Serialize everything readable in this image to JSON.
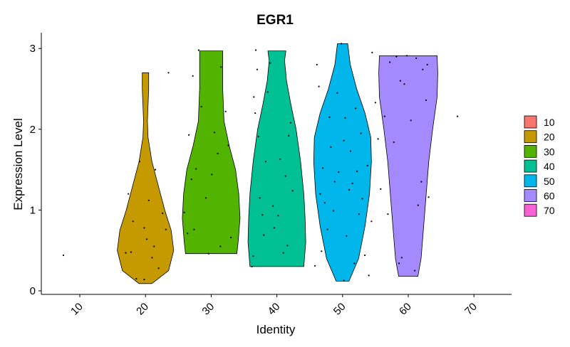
{
  "chart_data": {
    "type": "violin",
    "title": "EGR1",
    "xlabel": "Identity",
    "ylabel": "Expression Level",
    "ylim": [
      0,
      3.2
    ],
    "yticks": [
      "0",
      "1",
      "2",
      "3"
    ],
    "categories": [
      "10",
      "20",
      "30",
      "40",
      "50",
      "60",
      "70"
    ],
    "legend": {
      "position": "right",
      "entries": [
        {
          "label": "10",
          "color": "#F8766D"
        },
        {
          "label": "20",
          "color": "#C49A00"
        },
        {
          "label": "30",
          "color": "#53B400"
        },
        {
          "label": "40",
          "color": "#00C094"
        },
        {
          "label": "50",
          "color": "#00B6EB"
        },
        {
          "label": "60",
          "color": "#A58AFF"
        },
        {
          "label": "70",
          "color": "#FB61D7"
        }
      ]
    },
    "violins": [
      {
        "category": "20",
        "color": "#C49A00",
        "ymin": 0.09,
        "ymax": 2.7,
        "profile": [
          [
            0.09,
            0.1
          ],
          [
            0.25,
            0.36
          ],
          [
            0.5,
            0.44
          ],
          [
            0.75,
            0.4
          ],
          [
            1.0,
            0.3
          ],
          [
            1.3,
            0.2
          ],
          [
            1.6,
            0.1
          ],
          [
            1.9,
            0.04
          ],
          [
            2.1,
            0.03
          ],
          [
            2.5,
            0.05
          ],
          [
            2.7,
            0.05
          ]
        ]
      },
      {
        "category": "30",
        "color": "#53B400",
        "ymin": 0.46,
        "ymax": 2.97,
        "profile": [
          [
            0.46,
            0.4
          ],
          [
            0.6,
            0.42
          ],
          [
            0.9,
            0.45
          ],
          [
            1.2,
            0.43
          ],
          [
            1.5,
            0.38
          ],
          [
            1.8,
            0.28
          ],
          [
            2.1,
            0.2
          ],
          [
            2.5,
            0.18
          ],
          [
            2.8,
            0.18
          ],
          [
            2.97,
            0.18
          ]
        ]
      },
      {
        "category": "40",
        "color": "#00C094",
        "ymin": 0.3,
        "ymax": 2.97,
        "profile": [
          [
            0.3,
            0.42
          ],
          [
            0.6,
            0.45
          ],
          [
            0.9,
            0.44
          ],
          [
            1.2,
            0.42
          ],
          [
            1.6,
            0.37
          ],
          [
            2.0,
            0.3
          ],
          [
            2.3,
            0.22
          ],
          [
            2.6,
            0.15
          ],
          [
            2.85,
            0.12
          ],
          [
            2.97,
            0.14
          ]
        ]
      },
      {
        "category": "50",
        "color": "#00B6EB",
        "ymin": 0.12,
        "ymax": 3.06,
        "profile": [
          [
            0.12,
            0.1
          ],
          [
            0.4,
            0.25
          ],
          [
            0.8,
            0.35
          ],
          [
            1.2,
            0.42
          ],
          [
            1.6,
            0.45
          ],
          [
            1.9,
            0.44
          ],
          [
            2.2,
            0.35
          ],
          [
            2.5,
            0.22
          ],
          [
            2.8,
            0.12
          ],
          [
            3.06,
            0.08
          ]
        ]
      },
      {
        "category": "60",
        "color": "#A58AFF",
        "ymin": 0.18,
        "ymax": 2.91,
        "profile": [
          [
            0.18,
            0.15
          ],
          [
            0.4,
            0.2
          ],
          [
            0.8,
            0.24
          ],
          [
            1.2,
            0.28
          ],
          [
            1.6,
            0.32
          ],
          [
            2.0,
            0.38
          ],
          [
            2.4,
            0.45
          ],
          [
            2.7,
            0.46
          ],
          [
            2.91,
            0.45
          ]
        ]
      }
    ],
    "points": [
      {
        "x": -0.25,
        "y": 0.44
      },
      {
        "x": 0.7,
        "y": 0.47
      },
      {
        "x": 0.74,
        "y": 1.2
      },
      {
        "x": 0.78,
        "y": 0.48
      },
      {
        "x": 0.81,
        "y": 0.86
      },
      {
        "x": 0.86,
        "y": 0.15
      },
      {
        "x": 0.91,
        "y": 1.6
      },
      {
        "x": 0.98,
        "y": 0.78
      },
      {
        "x": 1.02,
        "y": 0.64
      },
      {
        "x": 1.05,
        "y": 1.12
      },
      {
        "x": 1.1,
        "y": 0.41
      },
      {
        "x": 1.13,
        "y": 0.55
      },
      {
        "x": 1.15,
        "y": 1.5
      },
      {
        "x": 1.2,
        "y": 0.28
      },
      {
        "x": 1.26,
        "y": 0.96
      },
      {
        "x": 1.31,
        "y": 0.76
      },
      {
        "x": 1.35,
        "y": 2.7
      },
      {
        "x": 0.98,
        "y": 0.14
      },
      {
        "x": 1.59,
        "y": 0.97
      },
      {
        "x": 1.64,
        "y": 0.71
      },
      {
        "x": 1.66,
        "y": 1.93
      },
      {
        "x": 1.7,
        "y": 1.38
      },
      {
        "x": 1.72,
        "y": 2.66
      },
      {
        "x": 1.74,
        "y": 0.76
      },
      {
        "x": 1.77,
        "y": 1.51
      },
      {
        "x": 1.81,
        "y": 2.98
      },
      {
        "x": 1.85,
        "y": 2.28
      },
      {
        "x": 1.92,
        "y": 1.15
      },
      {
        "x": 1.96,
        "y": 0.46
      },
      {
        "x": 2.01,
        "y": 1.44
      },
      {
        "x": 2.05,
        "y": 1.96
      },
      {
        "x": 2.1,
        "y": 1.7
      },
      {
        "x": 2.14,
        "y": 0.55
      },
      {
        "x": 2.15,
        "y": 2.77
      },
      {
        "x": 2.22,
        "y": 2.22
      },
      {
        "x": 2.26,
        "y": 1.8
      },
      {
        "x": 2.3,
        "y": 0.66
      },
      {
        "x": 2.62,
        "y": 0.3
      },
      {
        "x": 2.64,
        "y": 0.43
      },
      {
        "x": 2.65,
        "y": 2.4
      },
      {
        "x": 2.67,
        "y": 2.2
      },
      {
        "x": 2.68,
        "y": 2.98
      },
      {
        "x": 2.7,
        "y": 2.74
      },
      {
        "x": 2.72,
        "y": 1.91
      },
      {
        "x": 2.74,
        "y": 1.15
      },
      {
        "x": 2.78,
        "y": 0.94
      },
      {
        "x": 2.8,
        "y": 0.69
      },
      {
        "x": 2.83,
        "y": 1.6
      },
      {
        "x": 2.86,
        "y": 2.46
      },
      {
        "x": 2.9,
        "y": 2.82
      },
      {
        "x": 2.94,
        "y": 1.05
      },
      {
        "x": 2.96,
        "y": 0.78
      },
      {
        "x": 3.02,
        "y": 0.93
      },
      {
        "x": 3.05,
        "y": 1.63
      },
      {
        "x": 3.1,
        "y": 0.47
      },
      {
        "x": 3.13,
        "y": 1.42
      },
      {
        "x": 3.16,
        "y": 0.56
      },
      {
        "x": 3.18,
        "y": 1.92
      },
      {
        "x": 3.21,
        "y": 2.08
      },
      {
        "x": 3.24,
        "y": 1.24
      },
      {
        "x": 3.58,
        "y": 0.31
      },
      {
        "x": 3.61,
        "y": 2.8
      },
      {
        "x": 3.64,
        "y": 2.53
      },
      {
        "x": 3.66,
        "y": 1.2
      },
      {
        "x": 3.68,
        "y": 0.49
      },
      {
        "x": 3.7,
        "y": 1.52
      },
      {
        "x": 3.73,
        "y": 1.09
      },
      {
        "x": 3.77,
        "y": 0.76
      },
      {
        "x": 3.8,
        "y": 2.15
      },
      {
        "x": 3.82,
        "y": 1.78
      },
      {
        "x": 3.86,
        "y": 0.99
      },
      {
        "x": 3.88,
        "y": 1.35
      },
      {
        "x": 3.92,
        "y": 2.45
      },
      {
        "x": 3.94,
        "y": 1.47
      },
      {
        "x": 3.98,
        "y": 3.06
      },
      {
        "x": 4.02,
        "y": 1.86
      },
      {
        "x": 4.04,
        "y": 2.14
      },
      {
        "x": 4.06,
        "y": 0.68
      },
      {
        "x": 4.1,
        "y": 1.25
      },
      {
        "x": 4.12,
        "y": 1.73
      },
      {
        "x": 4.15,
        "y": 1.33
      },
      {
        "x": 4.18,
        "y": 0.34
      },
      {
        "x": 4.2,
        "y": 2.26
      },
      {
        "x": 4.22,
        "y": 1.48
      },
      {
        "x": 4.25,
        "y": 0.95
      },
      {
        "x": 4.28,
        "y": 1.95
      },
      {
        "x": 4.3,
        "y": 1.14
      },
      {
        "x": 4.34,
        "y": 0.44
      },
      {
        "x": 4.38,
        "y": 1.55
      },
      {
        "x": 4.4,
        "y": 0.19
      },
      {
        "x": 4.44,
        "y": 0.86
      },
      {
        "x": 4.02,
        "y": 0.13
      },
      {
        "x": 4.45,
        "y": 2.95
      },
      {
        "x": 4.5,
        "y": 2.33
      },
      {
        "x": 4.54,
        "y": 1.88
      },
      {
        "x": 4.58,
        "y": 1.26
      },
      {
        "x": 4.64,
        "y": 2.16
      },
      {
        "x": 4.69,
        "y": 0.95
      },
      {
        "x": 4.72,
        "y": 2.83
      },
      {
        "x": 4.78,
        "y": 1.84
      },
      {
        "x": 4.82,
        "y": 2.9
      },
      {
        "x": 4.86,
        "y": 0.34
      },
      {
        "x": 4.88,
        "y": 2.6
      },
      {
        "x": 4.9,
        "y": 0.41
      },
      {
        "x": 4.94,
        "y": 2.56
      },
      {
        "x": 4.98,
        "y": 2.91
      },
      {
        "x": 5.04,
        "y": 2.11
      },
      {
        "x": 5.1,
        "y": 0.25
      },
      {
        "x": 5.12,
        "y": 2.88
      },
      {
        "x": 5.15,
        "y": 1.06
      },
      {
        "x": 5.2,
        "y": 1.35
      },
      {
        "x": 5.22,
        "y": 2.74
      },
      {
        "x": 5.27,
        "y": 2.36
      },
      {
        "x": 5.31,
        "y": 1.16
      },
      {
        "x": 5.29,
        "y": 2.8
      },
      {
        "x": 5.75,
        "y": 2.16
      }
    ]
  }
}
